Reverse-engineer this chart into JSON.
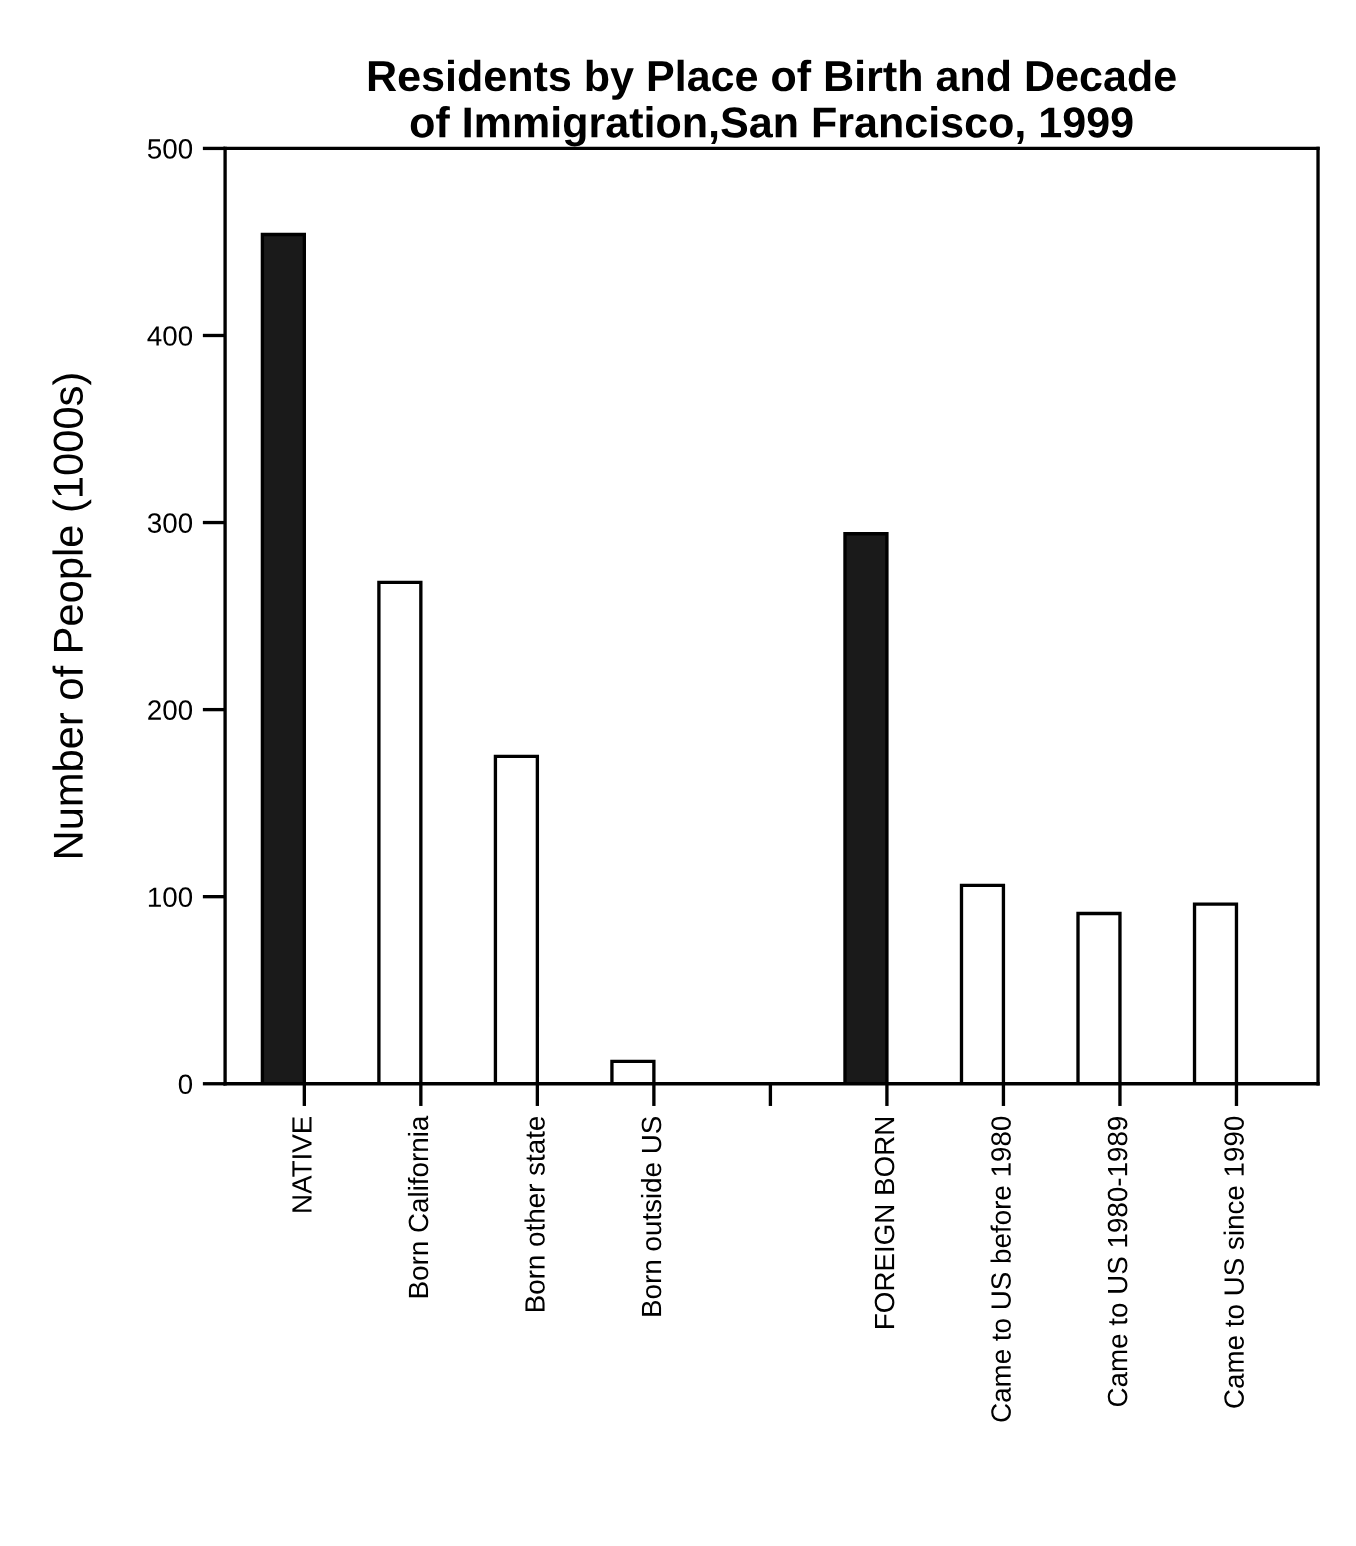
{
  "chart_data": {
    "type": "bar",
    "title": "Residents by Place of Birth and Decade\nof Immigration,San Francisco, 1999",
    "ylabel": "Number of People (1000s)",
    "categories": [
      "NATIVE",
      "Born California",
      "Born other state",
      "Born outside US",
      null,
      "FOREIGN BORN",
      "Came to US before 1980",
      "Came to US 1980-1989",
      "Came to US since 1990"
    ],
    "values": [
      454,
      268,
      175,
      12,
      null,
      294,
      106,
      91,
      96
    ],
    "colors": [
      "#1a1a1a",
      "#ffffff",
      "#ffffff",
      "#ffffff",
      null,
      "#1a1a1a",
      "#ffffff",
      "#ffffff",
      "#ffffff"
    ],
    "ylim": [
      0,
      500
    ],
    "yticks": [
      0,
      100,
      200,
      300,
      400,
      500
    ],
    "grid": false,
    "legend": false
  }
}
